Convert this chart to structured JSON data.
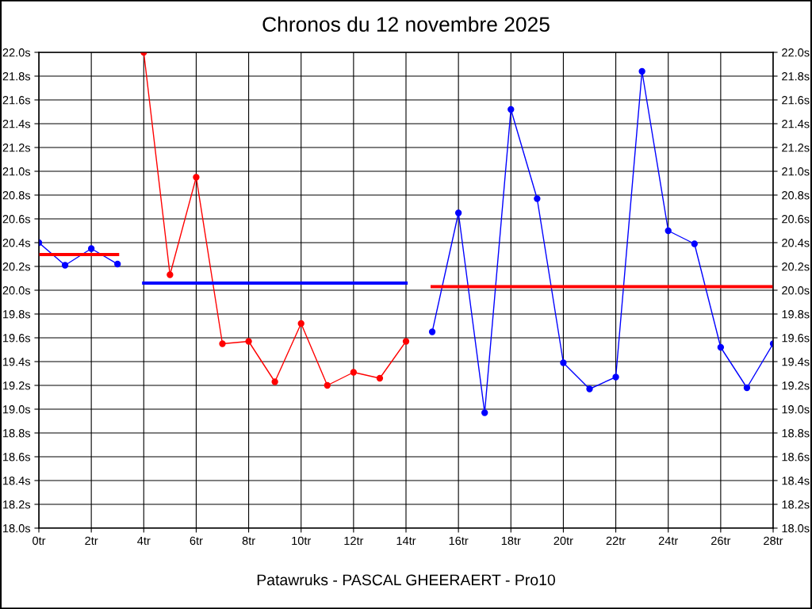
{
  "chart_data": {
    "type": "line",
    "title": "Chronos du 12 novembre 2025",
    "annotations": [
      "Patawruks - PASCAL GHEERAERT - Pro10"
    ],
    "series": [
      {
        "color": "#0000ff",
        "marker": "circle",
        "x": [
          0,
          1,
          2,
          3
        ],
        "values": [
          20.4,
          20.21,
          20.35,
          20.22
        ]
      },
      {
        "color": "#ff0000",
        "marker": "none",
        "x": [
          0,
          3
        ],
        "values": [
          20.3,
          20.3
        ]
      },
      {
        "color": "#ff0000",
        "marker": "circle",
        "x": [
          4,
          5,
          6,
          7,
          8,
          9,
          10,
          11,
          12,
          13,
          14
        ],
        "values": [
          22.0,
          20.13,
          20.95,
          19.55,
          19.57,
          19.23,
          19.72,
          19.2,
          19.31,
          19.26,
          19.57
        ]
      },
      {
        "color": "#0000ff",
        "marker": "none",
        "x": [
          4,
          14
        ],
        "values": [
          20.06,
          20.06
        ]
      },
      {
        "color": "#0000ff",
        "marker": "circle",
        "x": [
          15,
          16,
          17,
          18,
          19,
          20,
          21,
          22,
          23,
          24,
          25,
          26,
          27,
          28
        ],
        "values": [
          19.65,
          20.65,
          18.97,
          21.52,
          20.77,
          19.39,
          19.17,
          19.27,
          21.84,
          20.5,
          20.39,
          19.52,
          19.18,
          19.55
        ]
      },
      {
        "color": "#ff0000",
        "marker": "none",
        "x": [
          15,
          28
        ],
        "values": [
          20.03,
          20.03
        ]
      }
    ],
    "xlim": [
      0,
      28
    ],
    "xticks": [
      {
        "value": 0,
        "label": "0tr"
      },
      {
        "value": 2,
        "label": "2tr"
      },
      {
        "value": 4,
        "label": "4tr"
      },
      {
        "value": 6,
        "label": "6tr"
      },
      {
        "value": 8,
        "label": "8tr"
      },
      {
        "value": 10,
        "label": "10tr"
      },
      {
        "value": 12,
        "label": "12tr"
      },
      {
        "value": 14,
        "label": "14tr"
      },
      {
        "value": 16,
        "label": "16tr"
      },
      {
        "value": 18,
        "label": "18tr"
      },
      {
        "value": 20,
        "label": "20tr"
      },
      {
        "value": 22,
        "label": "22tr"
      },
      {
        "value": 24,
        "label": "24tr"
      },
      {
        "value": 26,
        "label": "26tr"
      },
      {
        "value": 28,
        "label": "28tr"
      }
    ],
    "ylim": [
      18.0,
      22.0
    ],
    "yticks": [
      {
        "value": 18.0,
        "label": "18.0s"
      },
      {
        "value": 18.2,
        "label": "18.2s"
      },
      {
        "value": 18.4,
        "label": "18.4s"
      },
      {
        "value": 18.6,
        "label": "18.6s"
      },
      {
        "value": 18.8,
        "label": "18.8s"
      },
      {
        "value": 19.0,
        "label": "19.0s"
      },
      {
        "value": 19.2,
        "label": "19.2s"
      },
      {
        "value": 19.4,
        "label": "19.4s"
      },
      {
        "value": 19.6,
        "label": "19.6s"
      },
      {
        "value": 19.8,
        "label": "19.8s"
      },
      {
        "value": 20.0,
        "label": "20.0s"
      },
      {
        "value": 20.2,
        "label": "20.2s"
      },
      {
        "value": 20.4,
        "label": "20.4s"
      },
      {
        "value": 20.6,
        "label": "20.6s"
      },
      {
        "value": 20.8,
        "label": "20.8s"
      },
      {
        "value": 21.0,
        "label": "21.0s"
      },
      {
        "value": 21.2,
        "label": "21.2s"
      },
      {
        "value": 21.4,
        "label": "21.4s"
      },
      {
        "value": 21.6,
        "label": "21.6s"
      },
      {
        "value": 21.8,
        "label": "21.8s"
      },
      {
        "value": 22.0,
        "label": "22.0s"
      }
    ],
    "y2lim": [
      18.0,
      22.0
    ],
    "y2ticks": [
      {
        "value": 18.0,
        "label": "18.0s"
      },
      {
        "value": 18.2,
        "label": "18.2s"
      },
      {
        "value": 18.4,
        "label": "18.4s"
      },
      {
        "value": 18.6,
        "label": "18.6s"
      },
      {
        "value": 18.8,
        "label": "18.8s"
      },
      {
        "value": 19.0,
        "label": "19.0s"
      },
      {
        "value": 19.2,
        "label": "19.2s"
      },
      {
        "value": 19.4,
        "label": "19.4s"
      },
      {
        "value": 19.6,
        "label": "19.6s"
      },
      {
        "value": 19.8,
        "label": "19.8s"
      },
      {
        "value": 20.0,
        "label": "20.0s"
      },
      {
        "value": 20.2,
        "label": "20.2s"
      },
      {
        "value": 20.4,
        "label": "20.4s"
      },
      {
        "value": 20.6,
        "label": "20.6s"
      },
      {
        "value": 20.8,
        "label": "20.8s"
      },
      {
        "value": 21.0,
        "label": "21.0s"
      },
      {
        "value": 21.2,
        "label": "21.2s"
      },
      {
        "value": 21.4,
        "label": "21.4s"
      },
      {
        "value": 21.6,
        "label": "21.6s"
      },
      {
        "value": 21.8,
        "label": "21.8s"
      },
      {
        "value": 22.0,
        "label": "22.0s"
      }
    ],
    "grid": true,
    "line_style": "solid"
  }
}
